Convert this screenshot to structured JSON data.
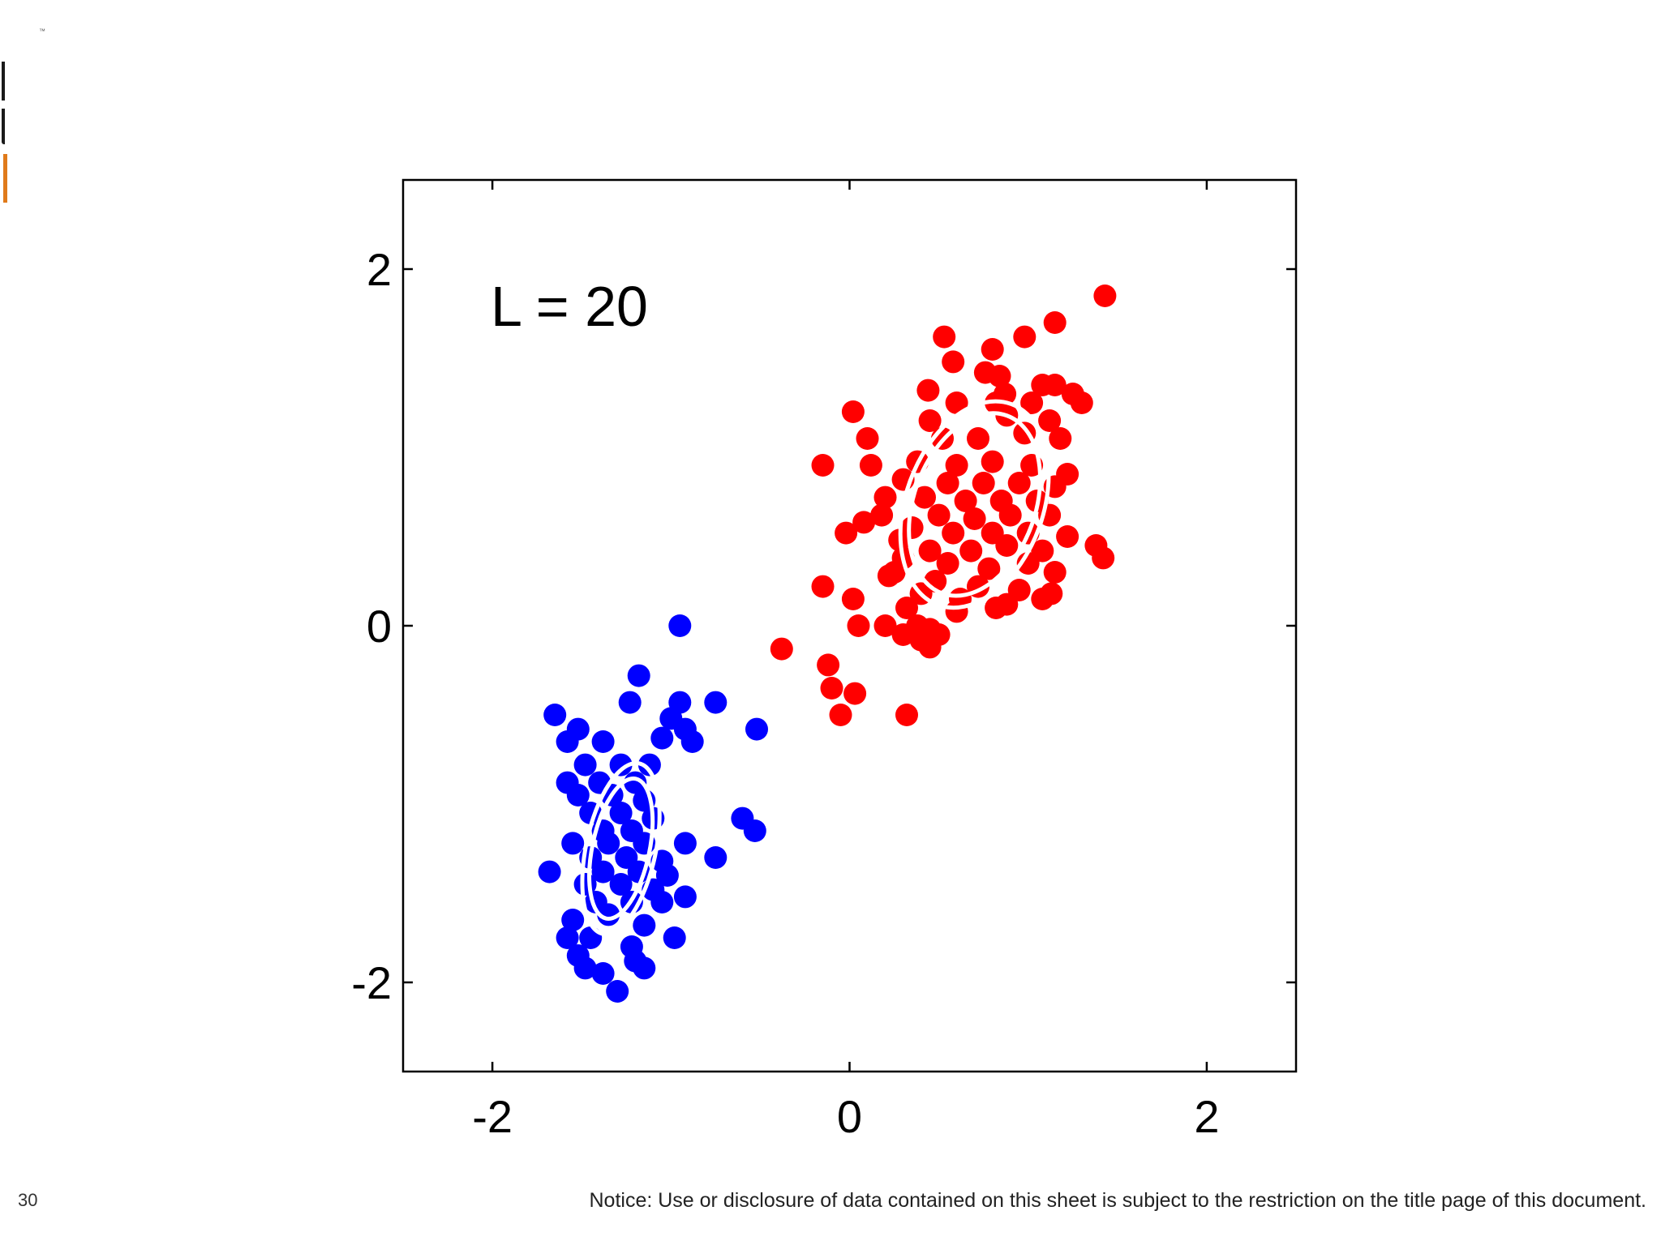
{
  "slide": {
    "page_number": "30",
    "notice": "Notice: Use or disclosure of data contained on this sheet is subject to the restriction on the title page of this document.",
    "tm": "™"
  },
  "colors": {
    "cluster_red": "#ff0000",
    "cluster_blue": "#0000ff",
    "ellipse": "#ffffff",
    "axis": "#000000",
    "logo_accent": "#e07a1a"
  },
  "chart_data": {
    "type": "scatter",
    "title": "",
    "xlabel": "",
    "ylabel": "",
    "xlim": [
      -2.5,
      2.5
    ],
    "ylim": [
      -2.5,
      2.5
    ],
    "xticks": [
      -2,
      0,
      2
    ],
    "yticks": [
      -2,
      0,
      2
    ],
    "xtick_labels": [
      "-2",
      "0",
      "2"
    ],
    "ytick_labels": [
      "-2",
      "0",
      "2"
    ],
    "grid": false,
    "annotation": "L = 20",
    "series": [
      {
        "color": "#ff0000",
        "points": [
          [
            1.43,
            1.85
          ],
          [
            1.15,
            1.7
          ],
          [
            0.53,
            1.62
          ],
          [
            0.98,
            1.62
          ],
          [
            0.8,
            1.55
          ],
          [
            0.58,
            1.48
          ],
          [
            0.76,
            1.42
          ],
          [
            0.84,
            1.4
          ],
          [
            0.44,
            1.32
          ],
          [
            0.87,
            1.3
          ],
          [
            1.08,
            1.35
          ],
          [
            1.15,
            1.35
          ],
          [
            1.25,
            1.3
          ],
          [
            0.6,
            1.25
          ],
          [
            0.82,
            1.25
          ],
          [
            1.02,
            1.25
          ],
          [
            1.3,
            1.25
          ],
          [
            0.02,
            1.2
          ],
          [
            0.45,
            1.15
          ],
          [
            0.88,
            1.18
          ],
          [
            1.12,
            1.15
          ],
          [
            0.1,
            1.05
          ],
          [
            0.52,
            1.05
          ],
          [
            0.72,
            1.05
          ],
          [
            0.98,
            1.08
          ],
          [
            1.18,
            1.05
          ],
          [
            -0.15,
            0.9
          ],
          [
            0.12,
            0.9
          ],
          [
            0.38,
            0.92
          ],
          [
            0.6,
            0.9
          ],
          [
            0.8,
            0.92
          ],
          [
            1.02,
            0.9
          ],
          [
            1.22,
            0.85
          ],
          [
            0.3,
            0.82
          ],
          [
            0.55,
            0.8
          ],
          [
            0.75,
            0.8
          ],
          [
            0.95,
            0.8
          ],
          [
            1.15,
            0.78
          ],
          [
            0.2,
            0.72
          ],
          [
            0.42,
            0.72
          ],
          [
            0.65,
            0.7
          ],
          [
            0.85,
            0.7
          ],
          [
            1.05,
            0.7
          ],
          [
            0.18,
            0.62
          ],
          [
            0.5,
            0.62
          ],
          [
            0.7,
            0.6
          ],
          [
            0.9,
            0.62
          ],
          [
            1.12,
            0.62
          ],
          [
            0.08,
            0.58
          ],
          [
            0.35,
            0.55
          ],
          [
            0.58,
            0.52
          ],
          [
            0.8,
            0.52
          ],
          [
            1.0,
            0.52
          ],
          [
            1.22,
            0.5
          ],
          [
            -0.02,
            0.52
          ],
          [
            0.28,
            0.48
          ],
          [
            0.45,
            0.42
          ],
          [
            0.68,
            0.42
          ],
          [
            0.88,
            0.45
          ],
          [
            1.08,
            0.42
          ],
          [
            1.38,
            0.45
          ],
          [
            0.3,
            0.38
          ],
          [
            0.55,
            0.35
          ],
          [
            0.78,
            0.32
          ],
          [
            1.0,
            0.35
          ],
          [
            1.15,
            0.3
          ],
          [
            1.42,
            0.38
          ],
          [
            0.25,
            0.3
          ],
          [
            0.48,
            0.25
          ],
          [
            0.72,
            0.22
          ],
          [
            0.95,
            0.2
          ],
          [
            1.13,
            0.18
          ],
          [
            0.22,
            0.28
          ],
          [
            -0.15,
            0.22
          ],
          [
            0.4,
            0.18
          ],
          [
            0.62,
            0.15
          ],
          [
            0.88,
            0.12
          ],
          [
            1.08,
            0.15
          ],
          [
            0.02,
            0.15
          ],
          [
            0.32,
            0.1
          ],
          [
            0.6,
            0.08
          ],
          [
            0.82,
            0.1
          ],
          [
            0.05,
            0.0
          ],
          [
            0.2,
            0.0
          ],
          [
            0.38,
            0.0
          ],
          [
            0.45,
            -0.02
          ],
          [
            0.3,
            -0.05
          ],
          [
            0.5,
            -0.05
          ],
          [
            0.4,
            -0.08
          ],
          [
            0.45,
            -0.12
          ],
          [
            -0.38,
            -0.13
          ],
          [
            -0.12,
            -0.22
          ],
          [
            -0.1,
            -0.35
          ],
          [
            0.03,
            -0.38
          ],
          [
            -0.05,
            -0.5
          ],
          [
            0.32,
            -0.5
          ]
        ]
      },
      {
        "color": "#0000ff",
        "points": [
          [
            -0.95,
            0.0
          ],
          [
            -1.18,
            -0.28
          ],
          [
            -0.95,
            -0.43
          ],
          [
            -1.23,
            -0.43
          ],
          [
            -0.75,
            -0.43
          ],
          [
            -1.65,
            -0.5
          ],
          [
            -1.0,
            -0.52
          ],
          [
            -1.52,
            -0.58
          ],
          [
            -0.92,
            -0.58
          ],
          [
            -1.58,
            -0.65
          ],
          [
            -1.38,
            -0.65
          ],
          [
            -1.05,
            -0.63
          ],
          [
            -0.88,
            -0.65
          ],
          [
            -0.52,
            -0.58
          ],
          [
            -1.48,
            -0.78
          ],
          [
            -1.28,
            -0.78
          ],
          [
            -1.12,
            -0.78
          ],
          [
            -1.58,
            -0.88
          ],
          [
            -1.4,
            -0.88
          ],
          [
            -1.2,
            -0.88
          ],
          [
            -1.52,
            -0.95
          ],
          [
            -1.33,
            -0.95
          ],
          [
            -1.15,
            -0.98
          ],
          [
            -1.45,
            -1.05
          ],
          [
            -1.28,
            -1.05
          ],
          [
            -1.1,
            -1.08
          ],
          [
            -1.38,
            -1.15
          ],
          [
            -1.22,
            -1.15
          ],
          [
            -0.6,
            -1.08
          ],
          [
            -0.53,
            -1.15
          ],
          [
            -1.55,
            -1.22
          ],
          [
            -1.35,
            -1.22
          ],
          [
            -1.15,
            -1.22
          ],
          [
            -0.92,
            -1.22
          ],
          [
            -1.45,
            -1.3
          ],
          [
            -1.25,
            -1.3
          ],
          [
            -1.05,
            -1.32
          ],
          [
            -0.75,
            -1.3
          ],
          [
            -1.38,
            -1.38
          ],
          [
            -1.18,
            -1.38
          ],
          [
            -1.02,
            -1.4
          ],
          [
            -1.68,
            -1.38
          ],
          [
            -1.48,
            -1.45
          ],
          [
            -1.28,
            -1.45
          ],
          [
            -1.1,
            -1.48
          ],
          [
            -0.92,
            -1.52
          ],
          [
            -1.42,
            -1.55
          ],
          [
            -1.22,
            -1.55
          ],
          [
            -1.05,
            -1.55
          ],
          [
            -1.55,
            -1.65
          ],
          [
            -1.35,
            -1.62
          ],
          [
            -1.15,
            -1.68
          ],
          [
            -1.58,
            -1.75
          ],
          [
            -1.45,
            -1.75
          ],
          [
            -1.22,
            -1.8
          ],
          [
            -0.98,
            -1.75
          ],
          [
            -1.52,
            -1.85
          ],
          [
            -1.2,
            -1.88
          ],
          [
            -1.48,
            -1.92
          ],
          [
            -1.15,
            -1.92
          ],
          [
            -1.38,
            -1.95
          ],
          [
            -1.3,
            -2.05
          ]
        ]
      }
    ],
    "ellipses": [
      {
        "center": [
          0.7,
          0.68
        ],
        "semi_axes": [
          0.34,
          0.53
        ],
        "rotation_deg": 20,
        "rings": [
          1.0,
          1.13
        ]
      },
      {
        "center": [
          -1.28,
          -1.25
        ],
        "semi_axes": [
          0.16,
          0.4
        ],
        "rotation_deg": 12,
        "rings": [
          1.0,
          1.22
        ]
      }
    ]
  }
}
